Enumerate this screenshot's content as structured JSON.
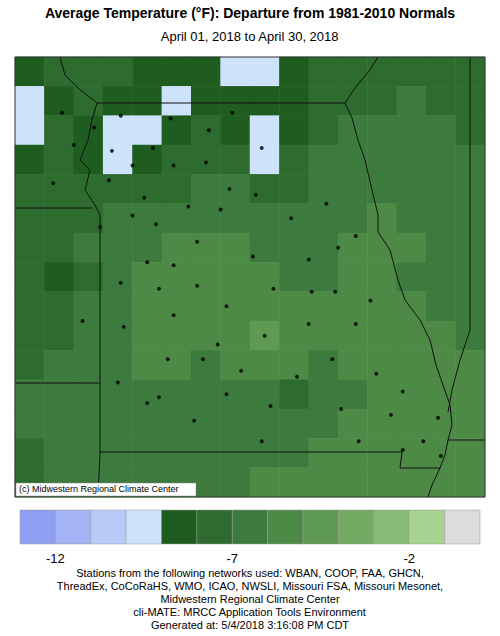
{
  "chart_data": {
    "type": "heatmap",
    "title": "Average Temperature (°F): Departure from 1981-2010 Normals",
    "subtitle": "April 01, 2018 to April 30, 2018",
    "tick_labels": false,
    "cells": [
      [
        -8.5,
        -8,
        -7.5,
        -8,
        -8.2,
        -8.5,
        -8.8,
        -9.3,
        -9.2,
        -8.5,
        -7.5,
        -8,
        -7.8,
        -7.5,
        -7.5,
        -7.5
      ],
      [
        -9.5,
        -8.5,
        -8,
        -8.3,
        -8.5,
        -9.2,
        -8.5,
        -8.2,
        -8.8,
        -8.5,
        -7.5,
        -7.8,
        -7.2,
        -7,
        -7.2,
        -7.5
      ],
      [
        -9.2,
        -8,
        -8.2,
        -9.2,
        -9.4,
        -8.8,
        -8,
        -8.2,
        -9.3,
        -8.5,
        -7.2,
        -7,
        -7,
        -6.8,
        -7,
        -7.2
      ],
      [
        -8.2,
        -8,
        -8.5,
        -9.3,
        -8.6,
        -8,
        -7.5,
        -7.8,
        -9.1,
        -8,
        -7,
        -6.8,
        -6.5,
        -6.5,
        -6.8,
        -7
      ],
      [
        -7.8,
        -7.5,
        -8,
        -7.8,
        -7.5,
        -7.2,
        -7,
        -7,
        -7.5,
        -7.2,
        -6.8,
        -6.5,
        -6.3,
        -6.5,
        -6.5,
        -6.8
      ],
      [
        -7.5,
        -7.2,
        -7.2,
        -7,
        -6.8,
        -6.5,
        -6.5,
        -6.5,
        -6.8,
        -6.8,
        -6.5,
        -6.2,
        -6,
        -6.3,
        -6.5,
        -6.8
      ],
      [
        -7.2,
        -7.5,
        -7,
        -6.5,
        -6.2,
        -5.8,
        -5.8,
        -6,
        -6.2,
        -6.5,
        -6.5,
        -6,
        -5.8,
        -6,
        -6.5,
        -6.8
      ],
      [
        -7.5,
        -8.3,
        -7.2,
        -6.5,
        -6,
        -5.5,
        -5.5,
        -5.8,
        -6,
        -6.3,
        -6.2,
        -5.8,
        -6,
        -6.2,
        -6.5,
        -6.8
      ],
      [
        -7.8,
        -8,
        -7,
        -6.5,
        -5.8,
        -5.5,
        -5.8,
        -5.8,
        -5.5,
        -5.8,
        -5.5,
        -5.2,
        -5.8,
        -6,
        -6.3,
        -6.5
      ],
      [
        -7.5,
        -7.5,
        -7,
        -6.2,
        -5.8,
        -5.8,
        -6,
        -5.3,
        -4.8,
        -5.5,
        -5.6,
        -5.8,
        -5.6,
        -5.8,
        -6,
        -6.3
      ],
      [
        -7.2,
        -7,
        -6.8,
        -6.2,
        -6,
        -6,
        -6.2,
        -5.5,
        -5.2,
        -6,
        -6.2,
        -6,
        -5.5,
        -5.5,
        -5.8,
        -6
      ],
      [
        -7,
        -6.8,
        -6.5,
        -6.3,
        -6.2,
        -6.3,
        -6.5,
        -6.2,
        -6.5,
        -7.5,
        -6.5,
        -6.2,
        -5.8,
        -5.3,
        -5.5,
        -5.8
      ],
      [
        -7,
        -6.8,
        -6.5,
        -6.3,
        -6.2,
        -6.3,
        -6.5,
        -6.5,
        -6.3,
        -6.5,
        -6.3,
        -6,
        -5.5,
        -5.2,
        -5.2,
        -5.5
      ],
      [
        -7.2,
        -7,
        -6.8,
        -6.5,
        -6.5,
        -6.5,
        -6.5,
        -6.3,
        -6.2,
        -6.2,
        -6,
        -5.8,
        -5.5,
        -5.5,
        -5.5,
        -5.8
      ],
      [
        -7.2,
        -7,
        -7,
        -6.8,
        -6.5,
        -6.5,
        -6.3,
        -6.3,
        -6,
        -6,
        -5.8,
        -5.8,
        -5.8,
        -6,
        -6,
        -6
      ]
    ],
    "stations": [
      [
        1.6,
        1.9
      ],
      [
        2.7,
        2.4
      ],
      [
        3.6,
        2.0
      ],
      [
        5.3,
        2.1
      ],
      [
        6.6,
        2.5
      ],
      [
        7.4,
        1.9
      ],
      [
        8.4,
        3.1
      ],
      [
        4.7,
        3.1
      ],
      [
        4.0,
        3.7
      ],
      [
        3.2,
        4.2
      ],
      [
        5.4,
        3.7
      ],
      [
        6.5,
        3.6
      ],
      [
        7.3,
        4.5
      ],
      [
        8.2,
        4.7
      ],
      [
        4.4,
        4.8
      ],
      [
        4.0,
        5.4
      ],
      [
        2.9,
        5.8
      ],
      [
        4.8,
        5.7
      ],
      [
        5.9,
        5.1
      ],
      [
        7.0,
        5.2
      ],
      [
        6.2,
        6.3
      ],
      [
        9.4,
        5.5
      ],
      [
        10.6,
        5.0
      ],
      [
        11.6,
        6.1
      ],
      [
        11.0,
        6.5
      ],
      [
        10.0,
        6.9
      ],
      [
        8.1,
        6.8
      ],
      [
        5.4,
        7.1
      ],
      [
        4.5,
        7.0
      ],
      [
        3.6,
        7.7
      ],
      [
        4.9,
        7.9
      ],
      [
        6.2,
        7.8
      ],
      [
        7.2,
        8.5
      ],
      [
        8.8,
        7.9
      ],
      [
        10.1,
        8.0
      ],
      [
        10.9,
        8.0
      ],
      [
        12.1,
        8.3
      ],
      [
        11.6,
        9.1
      ],
      [
        10.0,
        9.1
      ],
      [
        8.5,
        9.5
      ],
      [
        6.9,
        9.8
      ],
      [
        5.4,
        8.8
      ],
      [
        3.7,
        9.2
      ],
      [
        5.2,
        10.3
      ],
      [
        6.4,
        10.3
      ],
      [
        7.7,
        10.7
      ],
      [
        9.6,
        10.9
      ],
      [
        10.8,
        10.3
      ],
      [
        12.3,
        10.8
      ],
      [
        13.2,
        11.4
      ],
      [
        14.4,
        12.3
      ],
      [
        13.9,
        13.1
      ],
      [
        12.8,
        12.2
      ],
      [
        11.1,
        12.0
      ],
      [
        8.7,
        11.9
      ],
      [
        7.2,
        11.5
      ],
      [
        4.9,
        11.6
      ],
      [
        3.5,
        11.1
      ],
      [
        4.5,
        11.8
      ],
      [
        6.1,
        12.4
      ],
      [
        8.4,
        13.1
      ],
      [
        11.7,
        13.1
      ],
      [
        13.2,
        13.4
      ],
      [
        14.5,
        13.6
      ],
      [
        2.3,
        9.0
      ],
      [
        1.3,
        4.3
      ],
      [
        2.0,
        3.0
      ],
      [
        3.3,
        3.2
      ]
    ],
    "colorbar": {
      "range": [
        -13,
        0
      ],
      "ticks": [
        -12,
        -7,
        -2
      ],
      "colors": [
        "#8e9ef0",
        "#a3b3f5",
        "#b8cbf8",
        "#cde3fb",
        "#1f5c1f",
        "#2e6b2e",
        "#3d7a3d",
        "#4c8a45",
        "#5e9a52",
        "#72aa62",
        "#88bb75",
        "#a6d38f",
        "#dcdcdc"
      ]
    },
    "annotations": {
      "copyright": "(c) Midwestern Regional Climate Center",
      "footer": [
        "Stations from the following networks used: WBAN, COOP, FAA, GHCN,",
        "ThreadEx, CoCoRaHS, WMO, ICAO, NWSLI, Missouri FSA, Missouri Mesonet,",
        "Midwestern Regional Climate Center",
        "cli-MATE: MRCC Application Tools Environment",
        "Generated at: 5/4/2018 3:16:08 PM CDT"
      ]
    }
  }
}
